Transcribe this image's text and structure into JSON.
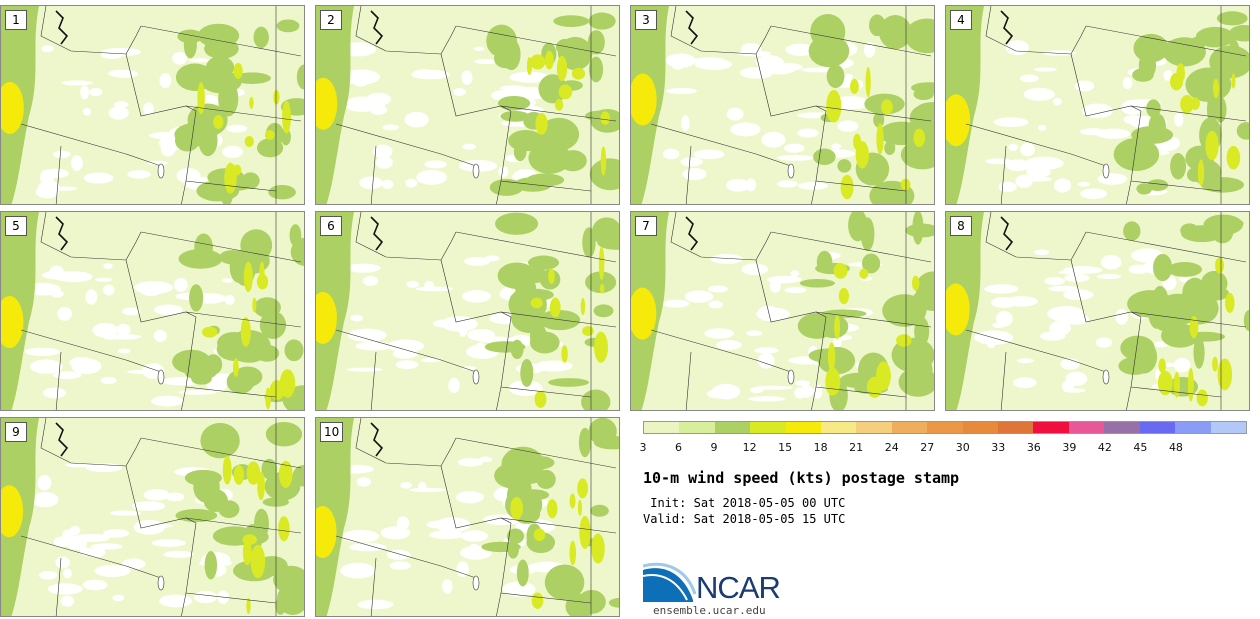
{
  "title": "10-m wind speed (kts) postage stamp",
  "init_label": "Init:",
  "init_value": "Sat 2018-05-05 00 UTC",
  "valid_label": "Valid:",
  "valid_value": "Sat 2018-05-05 15 UTC",
  "panels": [
    "1",
    "2",
    "3",
    "4",
    "5",
    "6",
    "7",
    "8",
    "9",
    "10"
  ],
  "colorbar": {
    "ticks": [
      "3",
      "6",
      "9",
      "12",
      "15",
      "18",
      "21",
      "24",
      "27",
      "30",
      "33",
      "36",
      "39",
      "42",
      "45",
      "48"
    ],
    "colors": [
      "#eaf5c2",
      "#d8ee9c",
      "#acd063",
      "#d9ea25",
      "#f5ea0a",
      "#f7ea86",
      "#f5cf7e",
      "#eeae5e",
      "#ea9848",
      "#e78a3c",
      "#dd7638",
      "#f0103f",
      "#e85898",
      "#9870a8",
      "#6a6af0",
      "#8a9cf6",
      "#b4c8f8"
    ]
  },
  "logo": {
    "name": "NCAR",
    "url": "ensemble.ucar.edu"
  }
}
